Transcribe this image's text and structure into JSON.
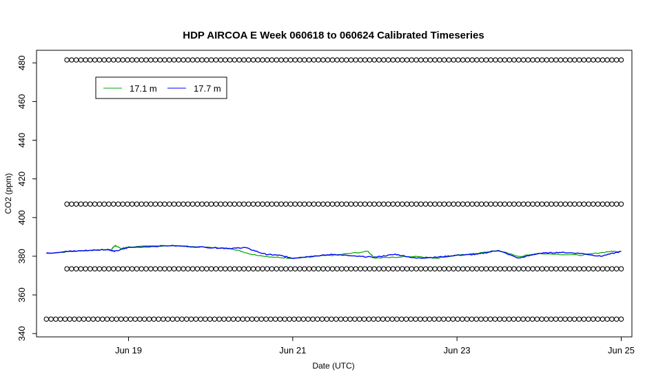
{
  "chart_data": {
    "type": "line",
    "title": "HDP AIRCOA E  Week 060618 to 060624  Calibrated Timeseries",
    "xlabel": "Date (UTC)",
    "ylabel": "CO2 (ppm)",
    "xlim": [
      "2006-06-18",
      "2006-06-25"
    ],
    "ylim": [
      340,
      485
    ],
    "x_ticks": [
      {
        "value": "2006-06-19",
        "label": "Jun 19"
      },
      {
        "value": "2006-06-21",
        "label": "Jun 21"
      },
      {
        "value": "2006-06-23",
        "label": "Jun 23"
      },
      {
        "value": "2006-06-25",
        "label": "Jun 25"
      }
    ],
    "y_ticks": [
      340,
      360,
      380,
      400,
      420,
      440,
      460,
      480
    ],
    "legend": {
      "position": "top-left",
      "entries": [
        {
          "label": "17.1 m",
          "color": "#00a000"
        },
        {
          "label": "17.7 m",
          "color": "#0000ff"
        }
      ]
    },
    "series": [
      {
        "name": "17.1 m",
        "color": "#00a000",
        "x": [
          "2006-06-18 00:00",
          "2006-06-18 12:00",
          "2006-06-18 19:00",
          "2006-06-18 20:00",
          "2006-06-18 22:00",
          "2006-06-19 00:00",
          "2006-06-19 12:00",
          "2006-06-20 00:00",
          "2006-06-20 06:00",
          "2006-06-20 12:00",
          "2006-06-20 18:00",
          "2006-06-21 00:00",
          "2006-06-21 06:00",
          "2006-06-21 12:00",
          "2006-06-21 22:00",
          "2006-06-22 00:00",
          "2006-06-22 12:00",
          "2006-06-22 18:00",
          "2006-06-23 00:00",
          "2006-06-23 06:00",
          "2006-06-23 12:00",
          "2006-06-23 19:00",
          "2006-06-23 20:00",
          "2006-06-24 00:00",
          "2006-06-24 12:00",
          "2006-06-24 21:00",
          "2006-06-25 00:00"
        ],
        "y": [
          381.5,
          383,
          383.5,
          385.5,
          384,
          384.8,
          385.5,
          384.5,
          384,
          381,
          379.5,
          379,
          380,
          380.5,
          382.5,
          379,
          380,
          379,
          380.5,
          381.5,
          383,
          379.5,
          380.5,
          381.5,
          380.5,
          382.5,
          382.5
        ]
      },
      {
        "name": "17.7 m",
        "color": "#0000ff",
        "x": [
          "2006-06-18 00:00",
          "2006-06-18 06:00",
          "2006-06-18 12:00",
          "2006-06-18 18:00",
          "2006-06-18 20:00",
          "2006-06-19 00:00",
          "2006-06-19 12:00",
          "2006-06-20 00:00",
          "2006-06-20 06:00",
          "2006-06-20 10:00",
          "2006-06-20 16:00",
          "2006-06-20 20:00",
          "2006-06-21 00:00",
          "2006-06-21 06:00",
          "2006-06-21 12:00",
          "2006-06-21 18:00",
          "2006-06-22 00:00",
          "2006-06-22 06:00",
          "2006-06-22 12:00",
          "2006-06-22 18:00",
          "2006-06-23 00:00",
          "2006-06-23 06:00",
          "2006-06-23 12:00",
          "2006-06-23 18:00",
          "2006-06-24 00:00",
          "2006-06-24 06:00",
          "2006-06-24 12:00",
          "2006-06-24 18:00",
          "2006-06-25 00:00"
        ],
        "y": [
          381.5,
          382.5,
          383,
          383.5,
          382.5,
          384.5,
          385.5,
          384.5,
          384,
          384.5,
          381,
          380.5,
          379,
          380,
          381,
          380,
          379.5,
          381,
          379,
          379.5,
          380.5,
          381,
          383,
          379,
          381.5,
          382,
          381.5,
          380,
          382.5
        ]
      }
    ],
    "marker_rows": [
      {
        "y": 481.5,
        "x_start": "2006-06-18 06:00",
        "x_end": "2006-06-25 00:00",
        "count": 120
      },
      {
        "y": 407,
        "x_start": "2006-06-18 06:00",
        "x_end": "2006-06-25 00:00",
        "count": 120
      },
      {
        "y": 373.5,
        "x_start": "2006-06-18 06:00",
        "x_end": "2006-06-25 00:00",
        "count": 120
      },
      {
        "y": 347.5,
        "x_start": "2006-06-18 00:00",
        "x_end": "2006-06-25 00:00",
        "count": 124
      }
    ]
  }
}
